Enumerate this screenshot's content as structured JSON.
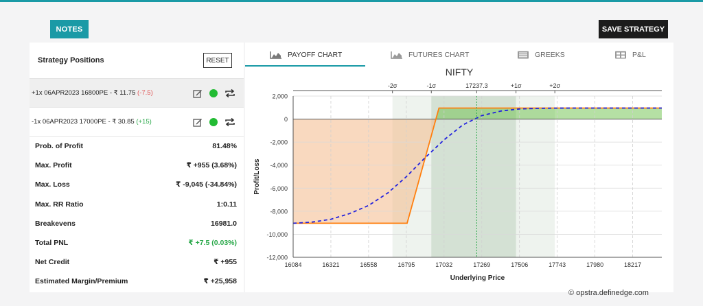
{
  "toolbar": {
    "notes_label": "NOTES",
    "save_label": "SAVE STRATEGY"
  },
  "left_panel": {
    "title": "Strategy Positions",
    "reset_label": "RESET",
    "positions": [
      {
        "text": "+1x  06APR2023  16800PE  - ₹ 11.75",
        "change": "(-7.5)",
        "change_color": "#e05555"
      },
      {
        "text": "-1x  06APR2023  17000PE  - ₹ 30.85",
        "change": "(+15)",
        "change_color": "#2aa84a"
      }
    ],
    "metrics": [
      {
        "label": "Prob. of Profit",
        "value": "81.48%"
      },
      {
        "label": "Max. Profit",
        "value": "₹ +955 (3.68%)"
      },
      {
        "label": "Max. Loss",
        "value": "₹ -9,045 (-34.84%)"
      },
      {
        "label": "Max. RR Ratio",
        "value": "1:0.11"
      },
      {
        "label": "Breakevens",
        "value": "16981.0"
      },
      {
        "label": "Total PNL",
        "value": "₹ +7.5 (0.03%)",
        "color": "#2aa84a"
      },
      {
        "label": "Net Credit",
        "value": "₹ +955"
      },
      {
        "label": "Estimated Margin/Premium",
        "value": "₹ +25,958"
      }
    ]
  },
  "tabs": [
    {
      "label": "PAYOFF CHART",
      "icon": "area-chart-icon",
      "active": true
    },
    {
      "label": "FUTURES CHART",
      "icon": "area-chart-icon",
      "active": false
    },
    {
      "label": "GREEKS",
      "icon": "list-icon",
      "active": false
    },
    {
      "label": "P&L",
      "icon": "grid-icon",
      "active": false
    }
  ],
  "chart_data": {
    "type": "line",
    "title": "NIFTY",
    "xlabel": "Underlying Price",
    "ylabel": "Profit/Loss",
    "xlim": [
      16084,
      18400
    ],
    "ylim": [
      -12000,
      2000
    ],
    "x_ticks": [
      16084,
      16321,
      16558,
      16795,
      17032,
      17269,
      17506,
      17743,
      17980,
      18217
    ],
    "y_ticks": [
      2000,
      0,
      -2000,
      -4000,
      -6000,
      -8000,
      -10000,
      -12000
    ],
    "spot": {
      "label": "17237.3",
      "value": 17237.3
    },
    "sigma_lines": [
      {
        "label": "-2σ",
        "value": 16708
      },
      {
        "label": "-1σ",
        "value": 16952
      },
      {
        "label": "+1σ",
        "value": 17484
      },
      {
        "label": "+2σ",
        "value": 17728
      }
    ],
    "series": [
      {
        "name": "",
        "color": "#ff7f0e",
        "style": "solid",
        "x": [
          16084,
          16800,
          17000,
          18400
        ],
        "y": [
          -9045,
          -9045,
          955,
          955
        ]
      },
      {
        "name": "",
        "color": "#2222dd",
        "style": "dashed",
        "x": [
          16084,
          16200,
          16321,
          16440,
          16558,
          16680,
          16795,
          16910,
          17032,
          17150,
          17269,
          17390,
          17506,
          17625,
          17743,
          17860,
          17980,
          18217,
          18400
        ],
        "y": [
          -9045,
          -8950,
          -8700,
          -8200,
          -7500,
          -6400,
          -5000,
          -3400,
          -1800,
          -500,
          300,
          700,
          880,
          935,
          950,
          955,
          955,
          955,
          955
        ]
      }
    ],
    "grid": true,
    "colors": {
      "profit_fill": "#6cc24a",
      "loss_fill": "#f4b98a",
      "band_1sigma": "#c9d9c9",
      "band_2sigma": "#e2ebe2",
      "spot_line": "#2aa84a"
    }
  },
  "credit": "© opstra.definedge.com"
}
